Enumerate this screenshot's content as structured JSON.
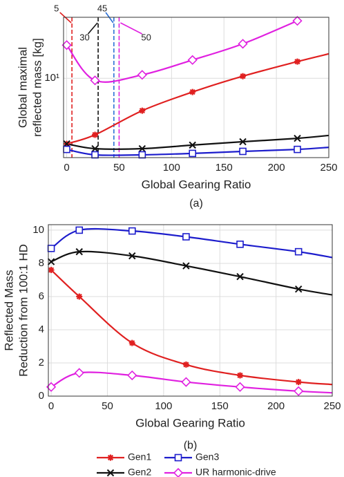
{
  "chart_data": [
    {
      "type": "line",
      "log_y": true,
      "grid": true,
      "xlabel": "Global Gearing Ratio",
      "ylabel": [
        "Global maximal",
        "reflected mass [kg]"
      ],
      "caption": "(a)",
      "x": [
        0,
        27,
        72,
        120,
        168,
        220,
        250
      ],
      "xlim": [
        -3,
        250
      ],
      "xticks": [
        0,
        50,
        100,
        150,
        200,
        250
      ],
      "ylim": [
        3.2,
        24
      ],
      "yticks": [
        {
          "value": 10,
          "label": "10¹"
        }
      ],
      "series": [
        {
          "color": "#e02020",
          "marker": "asterisk",
          "values": [
            3.9,
            4.44,
            6.28,
            8.21,
            10.3,
            12.7,
            14.2
          ]
        },
        {
          "color": "#111111",
          "marker": "x",
          "values": [
            3.9,
            3.64,
            3.64,
            3.83,
            4.02,
            4.22,
            4.4
          ]
        },
        {
          "color": "#1c1ccc",
          "marker": "square",
          "values": [
            3.6,
            3.33,
            3.33,
            3.4,
            3.5,
            3.6,
            3.71
          ]
        },
        {
          "color": "#e020e0",
          "marker": "diamond",
          "values": [
            16.1,
            9.7,
            10.5,
            13.0,
            16.4,
            22.8,
            null
          ]
        }
      ],
      "vlines": [
        {
          "x": 5,
          "color": "#e02020"
        },
        {
          "x": 30,
          "color": "#111111"
        },
        {
          "x": 45,
          "color": "#2a6fd6"
        },
        {
          "x": 50,
          "color": "#e020e0"
        }
      ]
    },
    {
      "type": "line",
      "grid": true,
      "xlabel": "Global Gearing Ratio",
      "ylabel": [
        "Reflected Mass",
        "Reduction from 100:1 HD"
      ],
      "caption": "(b)",
      "x": [
        0,
        25,
        72,
        120,
        168,
        220,
        250
      ],
      "xlim": [
        -2.5,
        250
      ],
      "xticks": [
        0,
        50,
        100,
        150,
        200,
        250
      ],
      "ylim": [
        0,
        10.33
      ],
      "yticks": [
        0,
        2,
        4,
        6,
        8,
        10
      ],
      "series": [
        {
          "name": "Gen1",
          "color": "#e02020",
          "marker": "asterisk",
          "values": [
            7.6,
            6.0,
            3.2,
            1.9,
            1.25,
            0.85,
            0.7
          ]
        },
        {
          "name": "Gen2",
          "color": "#111111",
          "marker": "x",
          "values": [
            8.1,
            8.7,
            8.45,
            7.85,
            7.2,
            6.45,
            6.1
          ]
        },
        {
          "name": "Gen3",
          "color": "#1c1ccc",
          "marker": "square",
          "values": [
            8.9,
            10.0,
            9.95,
            9.6,
            9.15,
            8.7,
            8.35
          ]
        },
        {
          "name": "UR harmonic-drive",
          "color": "#e020e0",
          "marker": "diamond",
          "values": [
            0.55,
            1.4,
            1.25,
            0.85,
            0.55,
            0.3,
            0.2
          ]
        }
      ]
    }
  ]
}
